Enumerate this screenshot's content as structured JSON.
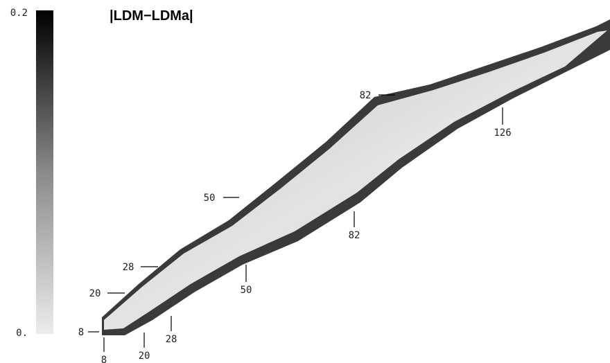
{
  "title": "|LDM−LDMa|",
  "colorbar": {
    "range": [
      0,
      0.2
    ],
    "ticks": [
      {
        "value": 0,
        "label": "0."
      },
      0.2
    ]
  },
  "proton_magic": [
    8,
    20,
    28,
    50,
    82
  ],
  "neutron_magic": [
    8,
    20,
    28,
    50,
    82,
    126
  ]
}
